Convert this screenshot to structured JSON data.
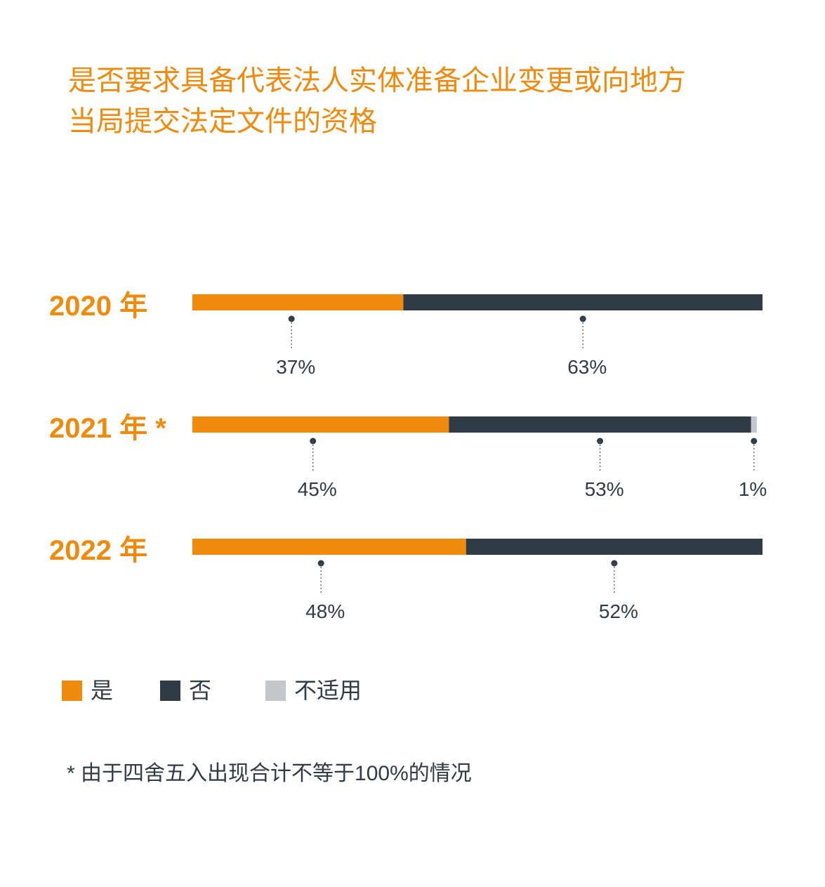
{
  "title_lines": [
    "是否要求具备代表法人实体准备企业变更或向地方",
    "当局提交法定文件的资格"
  ],
  "legend": [
    {
      "label": "是",
      "color": "#ef8a0c"
    },
    {
      "label": "否",
      "color": "#2f3b45"
    },
    {
      "label": "不适用",
      "color": "#c4c7ca"
    }
  ],
  "footnote": "* 由于四舍五入出现合计不等于100%的情况",
  "chart_data": {
    "type": "bar",
    "orientation": "horizontal",
    "stacked": true,
    "unit": "%",
    "categories": [
      "2020 年",
      "2021 年 *",
      "2022 年"
    ],
    "series": [
      {
        "name": "是",
        "color": "#ef8a0c",
        "values": [
          37,
          45,
          48
        ],
        "labels": [
          "37%",
          "45%",
          "48%"
        ]
      },
      {
        "name": "否",
        "color": "#2f3b45",
        "values": [
          63,
          53,
          52
        ],
        "labels": [
          "63%",
          "53%",
          "52%"
        ]
      },
      {
        "name": "不适用",
        "color": "#c4c7ca",
        "values": [
          0,
          1,
          0
        ],
        "labels": [
          "",
          "1%",
          ""
        ]
      }
    ],
    "xlim": [
      0,
      100
    ],
    "grid": false,
    "legend_position": "bottom-left"
  }
}
